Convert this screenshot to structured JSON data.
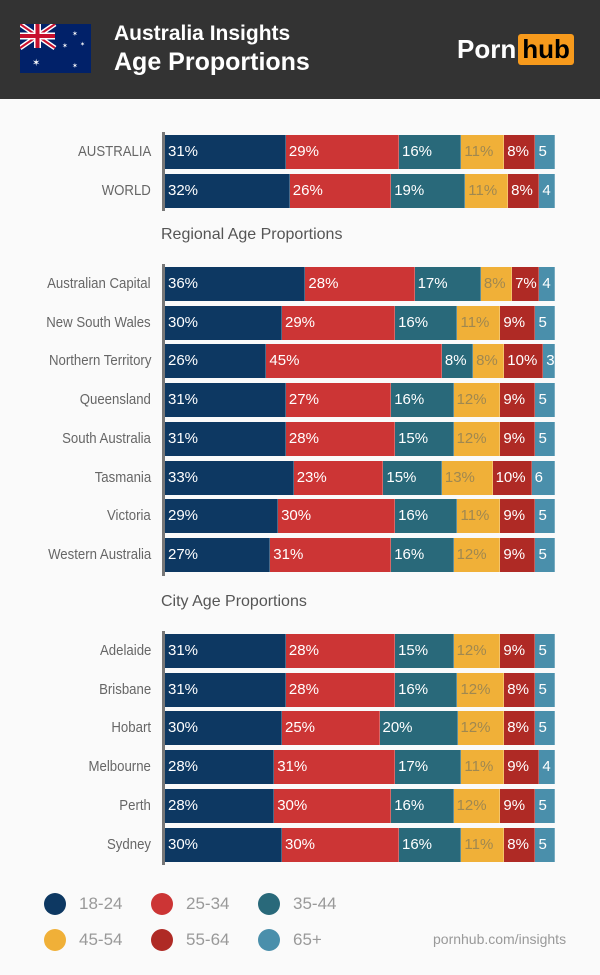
{
  "header": {
    "title1": "Australia Insights",
    "title2": "Age Proportions",
    "logo_left": "Porn",
    "logo_right": "hub"
  },
  "colors": {
    "18-24": "#0d3862",
    "25-34": "#cc3535",
    "35-44": "#29697a",
    "45-54": "#f0b038",
    "55-64": "#af2a25",
    "65+": "#4a8fab"
  },
  "chart_data": {
    "type": "bar",
    "orientation": "horizontal",
    "stacked": true,
    "series_names": [
      "18-24",
      "25-34",
      "35-44",
      "45-54",
      "55-64",
      "65+"
    ],
    "groups": [
      {
        "heading": "",
        "rows": [
          {
            "label": "AUSTRALIA",
            "values": [
              31,
              29,
              16,
              11,
              8,
              5
            ]
          },
          {
            "label": "WORLD",
            "values": [
              32,
              26,
              19,
              11,
              8,
              4
            ]
          }
        ]
      },
      {
        "heading": "Regional Age Proportions",
        "rows": [
          {
            "label": "Australian Capital",
            "values": [
              36,
              28,
              17,
              8,
              7,
              4
            ]
          },
          {
            "label": "New South Wales",
            "values": [
              30,
              29,
              16,
              11,
              9,
              5
            ]
          },
          {
            "label": "Northern Territory",
            "values": [
              26,
              45,
              8,
              8,
              10,
              3
            ]
          },
          {
            "label": "Queensland",
            "values": [
              31,
              27,
              16,
              12,
              9,
              5
            ]
          },
          {
            "label": "South Australia",
            "values": [
              31,
              28,
              15,
              12,
              9,
              5
            ]
          },
          {
            "label": "Tasmania",
            "values": [
              33,
              23,
              15,
              13,
              10,
              6
            ]
          },
          {
            "label": "Victoria",
            "values": [
              29,
              30,
              16,
              11,
              9,
              5
            ]
          },
          {
            "label": "Western Australia",
            "values": [
              27,
              31,
              16,
              12,
              9,
              5
            ]
          }
        ]
      },
      {
        "heading": "City Age Proportions",
        "rows": [
          {
            "label": "Adelaide",
            "values": [
              31,
              28,
              15,
              12,
              9,
              5
            ]
          },
          {
            "label": "Brisbane",
            "values": [
              31,
              28,
              16,
              12,
              8,
              5
            ]
          },
          {
            "label": "Hobart",
            "values": [
              30,
              25,
              20,
              12,
              8,
              5
            ]
          },
          {
            "label": "Melbourne",
            "values": [
              28,
              31,
              17,
              11,
              9,
              4
            ]
          },
          {
            "label": "Perth",
            "values": [
              28,
              30,
              16,
              12,
              9,
              5
            ]
          },
          {
            "label": "Sydney",
            "values": [
              30,
              30,
              16,
              11,
              8,
              5
            ]
          }
        ]
      }
    ],
    "legend": [
      "18-24",
      "25-34",
      "35-44",
      "45-54",
      "55-64",
      "65+"
    ],
    "legend_placement": "bottom-left"
  },
  "footer": {
    "source": "pornhub.com/insights"
  }
}
